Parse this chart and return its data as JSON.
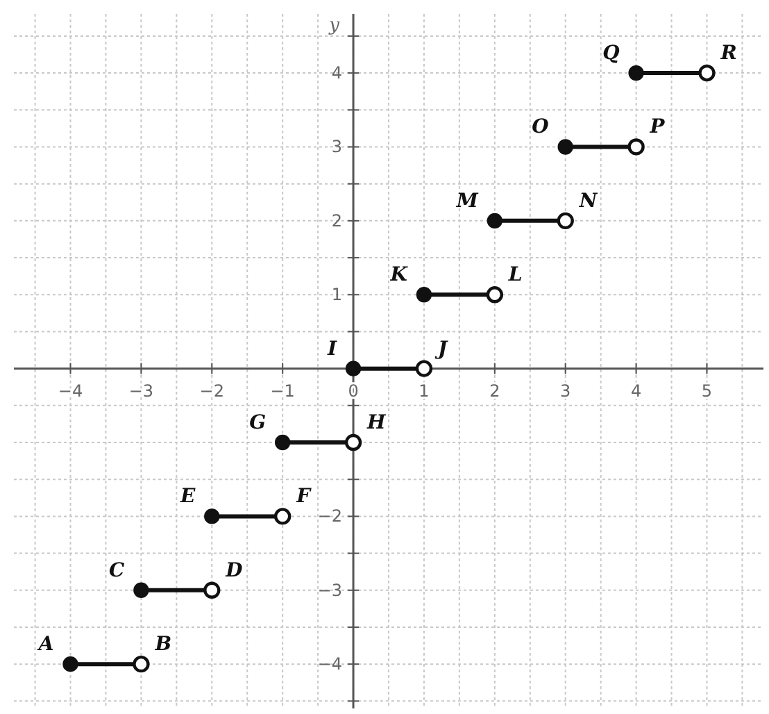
{
  "chart_data": {
    "type": "line",
    "ylabel": "y",
    "xlim": [
      -4.8,
      5.8
    ],
    "ylim": [
      -4.6,
      4.8
    ],
    "xticks": [
      -4,
      -3,
      -2,
      -1,
      0,
      1,
      2,
      3,
      4,
      5,
      {
        "value": -4.5,
        "label": null
      },
      {
        "value": -3.5,
        "label": null
      },
      {
        "value": -2.5,
        "label": null
      },
      {
        "value": -1.5,
        "label": null
      },
      {
        "value": -0.5,
        "label": null
      },
      {
        "value": 0.5,
        "label": null
      },
      {
        "value": 1.5,
        "label": null
      },
      {
        "value": 2.5,
        "label": null
      },
      {
        "value": 3.5,
        "label": null
      },
      {
        "value": 4.5,
        "label": null
      },
      {
        "value": 5.5,
        "label": null
      }
    ],
    "yticks": [
      -4,
      -3,
      -2,
      {
        "value": -1,
        "label": null
      },
      1,
      2,
      3,
      4,
      {
        "value": -4.5,
        "label": null
      },
      {
        "value": -3.5,
        "label": null
      },
      {
        "value": -2.5,
        "label": null
      },
      {
        "value": -1.5,
        "label": null
      },
      {
        "value": -0.5,
        "label": null
      },
      {
        "value": 0.5,
        "label": null
      },
      {
        "value": 1.5,
        "label": null
      },
      {
        "value": 2.5,
        "label": null
      },
      {
        "value": 3.5,
        "label": null
      },
      {
        "value": 4.5,
        "label": null
      }
    ],
    "grid": true,
    "marker": "circle",
    "line_style": "solid",
    "series": [
      {
        "color": "#111111",
        "x": [
          -4,
          -3
        ],
        "values": [
          -4,
          -4
        ]
      },
      {
        "color": "#111111",
        "x": [
          -3,
          -2
        ],
        "values": [
          -3,
          -3
        ]
      },
      {
        "color": "#111111",
        "x": [
          -2,
          -1
        ],
        "values": [
          -2,
          -2
        ]
      },
      {
        "color": "#111111",
        "x": [
          -1,
          0
        ],
        "values": [
          -1,
          -1
        ]
      },
      {
        "color": "#111111",
        "x": [
          0,
          1
        ],
        "values": [
          0,
          0
        ]
      },
      {
        "color": "#111111",
        "x": [
          1,
          2
        ],
        "values": [
          1,
          1
        ]
      },
      {
        "color": "#111111",
        "x": [
          2,
          3
        ],
        "values": [
          2,
          2
        ]
      },
      {
        "color": "#111111",
        "x": [
          3,
          4
        ],
        "values": [
          3,
          3
        ]
      },
      {
        "color": "#111111",
        "x": [
          4,
          5
        ],
        "values": [
          4,
          4
        ]
      }
    ],
    "annotations": [
      {
        "text": "A",
        "x": -4,
        "y": -4
      },
      {
        "text": "B",
        "x": -3,
        "y": -4
      },
      {
        "text": "C",
        "x": -3,
        "y": -3
      },
      {
        "text": "D",
        "x": -2,
        "y": -3
      },
      {
        "text": "E",
        "x": -2,
        "y": -2
      },
      {
        "text": "F",
        "x": -1,
        "y": -2
      },
      {
        "text": "G",
        "x": -1,
        "y": -1
      },
      {
        "text": "H",
        "x": 0,
        "y": -1
      },
      {
        "text": "I",
        "x": 0,
        "y": 0
      },
      {
        "text": "J",
        "x": 1,
        "y": 0
      },
      {
        "text": "K",
        "x": 1,
        "y": 1
      },
      {
        "text": "L",
        "x": 2,
        "y": 1
      },
      {
        "text": "M",
        "x": 2,
        "y": 2
      },
      {
        "text": "N",
        "x": 3,
        "y": 2
      },
      {
        "text": "O",
        "x": 3,
        "y": 3
      },
      {
        "text": "P",
        "x": 4,
        "y": 3
      },
      {
        "text": "Q",
        "x": 4,
        "y": 4
      },
      {
        "text": "R",
        "x": 5,
        "y": 4
      }
    ]
  }
}
